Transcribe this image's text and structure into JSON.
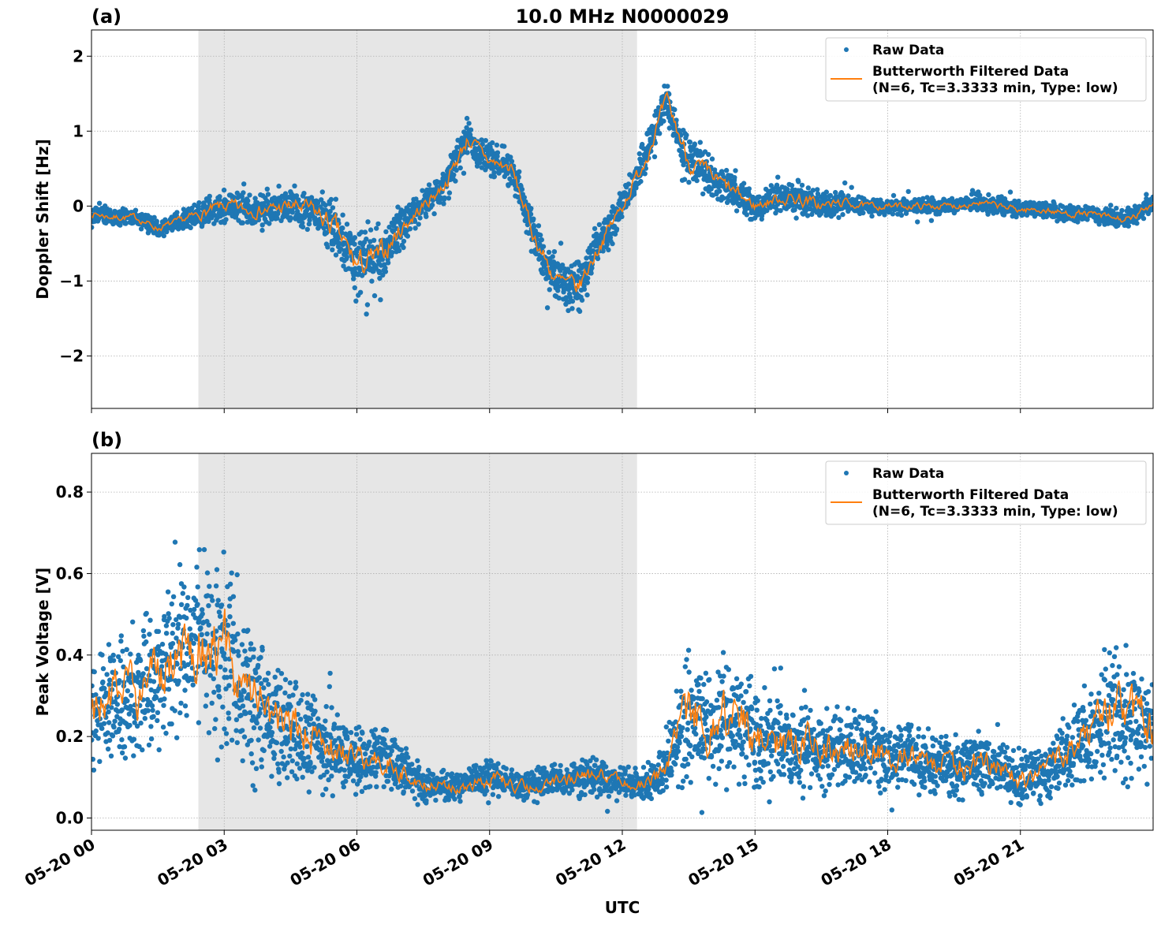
{
  "chart_data": [
    {
      "type": "scatter",
      "panel_label": "(a)",
      "title": "10.0 MHz N0000029",
      "xlabel": "",
      "ylabel": "Doppler Shift [Hz]",
      "xlim": [
        "05-20 00:00",
        "05-21 00:00"
      ],
      "ylim": [
        -2.7,
        2.35
      ],
      "x_ticks": [
        "05-20 00",
        "05-20 03",
        "05-20 06",
        "05-20 09",
        "05-20 12",
        "05-20 15",
        "05-20 18",
        "05-20 21"
      ],
      "y_ticks": [
        2,
        1,
        0,
        -1,
        -2
      ],
      "y_tick_labels": [
        "2",
        "1",
        "0",
        "−1",
        "−2"
      ],
      "grid": true,
      "shaded_span": [
        "02:25",
        "12:20"
      ],
      "shade_color": "#e6e6e6",
      "legend_placement": "upper right",
      "legend": [
        "Raw Data",
        "Butterworth Filtered Data",
        "(N=6, Tc=3.3333 min, Type: low)"
      ],
      "series": [
        {
          "name": "Raw Data",
          "kind": "points",
          "color": "#1f77b4",
          "times": [
            "00:00",
            "00:30",
            "01:00",
            "01:30",
            "02:00",
            "02:30",
            "03:00",
            "03:30",
            "04:00",
            "04:30",
            "05:00",
            "05:30",
            "06:00",
            "06:30",
            "07:00",
            "07:30",
            "08:00",
            "08:30",
            "09:00",
            "09:30",
            "10:00",
            "10:30",
            "11:00",
            "11:30",
            "12:00",
            "12:30",
            "13:00",
            "13:30",
            "14:00",
            "14:30",
            "15:00",
            "15:30",
            "16:00",
            "16:30",
            "17:00",
            "17:30",
            "18:00",
            "18:30",
            "19:00",
            "19:30",
            "20:00",
            "20:30",
            "21:00",
            "21:30",
            "22:00",
            "22:30",
            "23:00",
            "23:30",
            "24:00"
          ],
          "center": [
            -0.1,
            -0.15,
            -0.15,
            -0.3,
            -0.2,
            -0.1,
            0.0,
            -0.05,
            -0.05,
            0.0,
            -0.05,
            -0.3,
            -0.8,
            -0.7,
            -0.3,
            0.0,
            0.3,
            0.9,
            0.6,
            0.5,
            -0.4,
            -1.0,
            -1.1,
            -0.5,
            0.0,
            0.6,
            1.4,
            0.6,
            0.4,
            0.2,
            0.0,
            0.1,
            0.1,
            0.0,
            0.05,
            0.0,
            0.0,
            0.0,
            0.0,
            0.0,
            0.05,
            0.0,
            -0.05,
            -0.05,
            -0.1,
            -0.1,
            -0.15,
            -0.2,
            0.05
          ],
          "spread": [
            0.15,
            0.15,
            0.15,
            0.15,
            0.15,
            0.25,
            0.3,
            0.3,
            0.3,
            0.35,
            0.4,
            0.55,
            0.65,
            0.6,
            0.4,
            0.3,
            0.3,
            0.35,
            0.3,
            0.3,
            0.35,
            0.45,
            0.45,
            0.35,
            0.3,
            0.35,
            0.35,
            0.45,
            0.35,
            0.3,
            0.25,
            0.25,
            0.35,
            0.25,
            0.2,
            0.15,
            0.15,
            0.15,
            0.15,
            0.15,
            0.15,
            0.15,
            0.15,
            0.15,
            0.15,
            0.15,
            0.15,
            0.2,
            0.15
          ]
        },
        {
          "name": "Butterworth Filtered Data (N=6, Tc=3.3333 min, Type: low)",
          "kind": "line",
          "color": "#ff7f0e",
          "times": [
            "00:00",
            "00:30",
            "01:00",
            "01:30",
            "02:00",
            "02:30",
            "03:00",
            "03:30",
            "04:00",
            "04:30",
            "05:00",
            "05:30",
            "06:00",
            "06:30",
            "07:00",
            "07:30",
            "08:00",
            "08:30",
            "09:00",
            "09:30",
            "10:00",
            "10:30",
            "11:00",
            "11:30",
            "12:00",
            "12:30",
            "13:00",
            "13:30",
            "14:00",
            "14:30",
            "15:00",
            "15:30",
            "16:00",
            "16:30",
            "17:00",
            "17:30",
            "18:00",
            "18:30",
            "19:00",
            "19:30",
            "20:00",
            "20:30",
            "21:00",
            "21:30",
            "22:00",
            "22:30",
            "23:00",
            "23:30",
            "24:00"
          ],
          "values": [
            -0.1,
            -0.15,
            -0.15,
            -0.3,
            -0.2,
            -0.1,
            0.0,
            -0.05,
            -0.05,
            0.0,
            -0.05,
            -0.3,
            -0.8,
            -0.7,
            -0.3,
            0.0,
            0.3,
            0.9,
            0.6,
            0.5,
            -0.4,
            -1.0,
            -1.1,
            -0.5,
            0.0,
            0.6,
            1.4,
            0.6,
            0.4,
            0.2,
            0.0,
            0.1,
            0.1,
            0.0,
            0.05,
            0.0,
            0.0,
            0.0,
            0.0,
            0.0,
            0.05,
            0.0,
            -0.05,
            -0.05,
            -0.1,
            -0.1,
            -0.15,
            -0.2,
            0.05
          ]
        }
      ]
    },
    {
      "type": "scatter",
      "panel_label": "(b)",
      "title": "",
      "xlabel": "UTC",
      "ylabel": "Peak Voltage [V]",
      "xlim": [
        "05-20 00:00",
        "05-21 00:00"
      ],
      "ylim": [
        -0.03,
        0.895
      ],
      "x_ticks": [
        "05-20 00",
        "05-20 03",
        "05-20 06",
        "05-20 09",
        "05-20 12",
        "05-20 15",
        "05-20 18",
        "05-20 21"
      ],
      "y_ticks": [
        0.8,
        0.6,
        0.4,
        0.2,
        0.0
      ],
      "y_tick_labels": [
        "0.8",
        "0.6",
        "0.4",
        "0.2",
        "0.0"
      ],
      "grid": true,
      "shaded_span": [
        "02:25",
        "12:20"
      ],
      "shade_color": "#e6e6e6",
      "legend_placement": "upper right",
      "legend": [
        "Raw Data",
        "Butterworth Filtered Data",
        "(N=6, Tc=3.3333 min, Type: low)"
      ],
      "series": [
        {
          "name": "Raw Data",
          "kind": "points",
          "color": "#1f77b4",
          "times": [
            "00:00",
            "00:30",
            "01:00",
            "01:30",
            "02:00",
            "02:30",
            "03:00",
            "03:30",
            "04:00",
            "04:30",
            "05:00",
            "05:30",
            "06:00",
            "06:30",
            "07:00",
            "07:30",
            "08:00",
            "08:30",
            "09:00",
            "09:30",
            "10:00",
            "10:30",
            "11:00",
            "11:30",
            "12:00",
            "12:30",
            "13:00",
            "13:30",
            "14:00",
            "14:30",
            "15:00",
            "15:30",
            "16:00",
            "16:30",
            "17:00",
            "17:30",
            "18:00",
            "18:30",
            "19:00",
            "19:30",
            "20:00",
            "20:30",
            "21:00",
            "21:30",
            "22:00",
            "22:30",
            "23:00",
            "23:30",
            "24:00"
          ],
          "center": [
            0.25,
            0.3,
            0.3,
            0.35,
            0.4,
            0.45,
            0.4,
            0.3,
            0.25,
            0.22,
            0.2,
            0.17,
            0.15,
            0.15,
            0.12,
            0.08,
            0.08,
            0.08,
            0.1,
            0.08,
            0.08,
            0.09,
            0.1,
            0.1,
            0.09,
            0.08,
            0.12,
            0.28,
            0.22,
            0.25,
            0.2,
            0.18,
            0.18,
            0.17,
            0.17,
            0.17,
            0.15,
            0.15,
            0.13,
            0.13,
            0.13,
            0.12,
            0.1,
            0.11,
            0.15,
            0.2,
            0.28,
            0.25,
            0.23
          ],
          "spread": [
            0.18,
            0.22,
            0.22,
            0.22,
            0.25,
            0.3,
            0.32,
            0.25,
            0.2,
            0.18,
            0.16,
            0.14,
            0.12,
            0.11,
            0.09,
            0.06,
            0.05,
            0.05,
            0.07,
            0.05,
            0.05,
            0.05,
            0.06,
            0.06,
            0.05,
            0.05,
            0.1,
            0.25,
            0.2,
            0.22,
            0.18,
            0.15,
            0.15,
            0.14,
            0.13,
            0.13,
            0.12,
            0.12,
            0.11,
            0.11,
            0.11,
            0.1,
            0.09,
            0.09,
            0.12,
            0.15,
            0.25,
            0.22,
            0.18
          ]
        },
        {
          "name": "Butterworth Filtered Data (N=6, Tc=3.3333 min, Type: low)",
          "kind": "line",
          "color": "#ff7f0e",
          "times": [
            "00:00",
            "00:30",
            "01:00",
            "01:30",
            "02:00",
            "02:30",
            "03:00",
            "03:30",
            "04:00",
            "04:30",
            "05:00",
            "05:30",
            "06:00",
            "06:30",
            "07:00",
            "07:30",
            "08:00",
            "08:30",
            "09:00",
            "09:30",
            "10:00",
            "10:30",
            "11:00",
            "11:30",
            "12:00",
            "12:30",
            "13:00",
            "13:30",
            "14:00",
            "14:30",
            "15:00",
            "15:30",
            "16:00",
            "16:30",
            "17:00",
            "17:30",
            "18:00",
            "18:30",
            "19:00",
            "19:30",
            "20:00",
            "20:30",
            "21:00",
            "21:30",
            "22:00",
            "22:30",
            "23:00",
            "23:30",
            "24:00"
          ],
          "values": [
            0.25,
            0.3,
            0.3,
            0.35,
            0.4,
            0.45,
            0.4,
            0.3,
            0.25,
            0.22,
            0.2,
            0.17,
            0.15,
            0.15,
            0.12,
            0.08,
            0.08,
            0.08,
            0.1,
            0.08,
            0.08,
            0.09,
            0.1,
            0.1,
            0.09,
            0.08,
            0.12,
            0.28,
            0.22,
            0.25,
            0.2,
            0.18,
            0.18,
            0.17,
            0.17,
            0.17,
            0.15,
            0.15,
            0.13,
            0.13,
            0.13,
            0.12,
            0.1,
            0.11,
            0.15,
            0.2,
            0.28,
            0.25,
            0.23
          ]
        }
      ]
    }
  ]
}
